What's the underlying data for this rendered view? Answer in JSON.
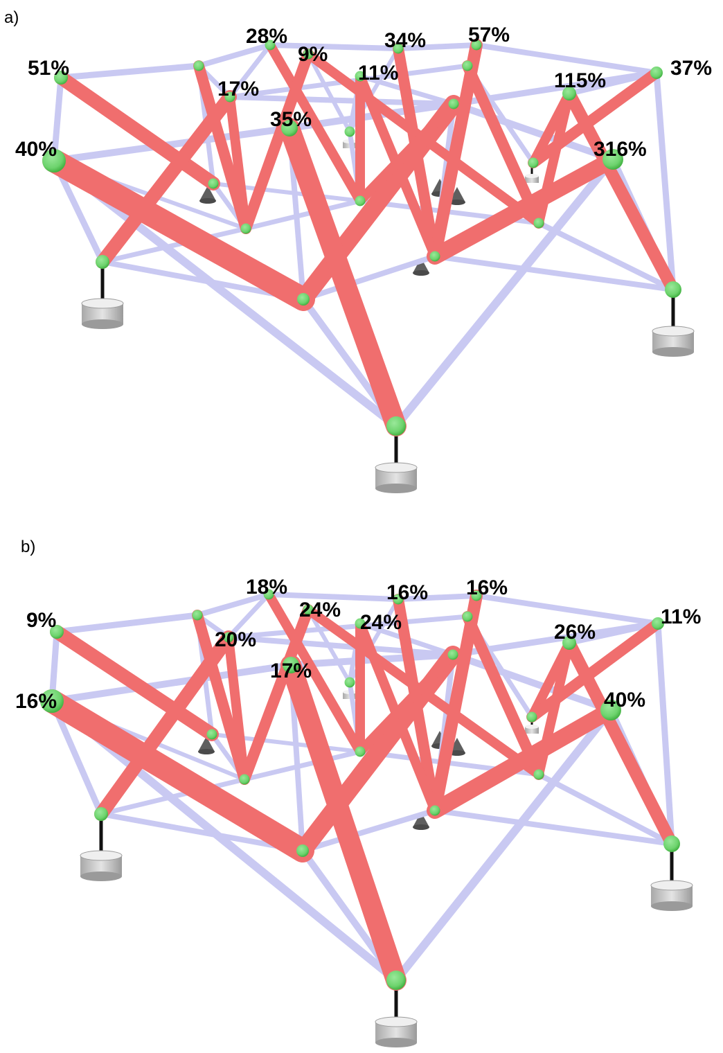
{
  "colors": {
    "tension": "#f06e6e",
    "compression": "#c9c9f2",
    "node": "#6dd36d",
    "node_dark": "#43b243",
    "support_post": "#111111",
    "support_base": "#bdbdbd",
    "pinned_support": "#5f5f5f",
    "label": "#000000"
  },
  "panels": [
    {
      "label": "a)",
      "nodes": [
        {
          "id": "front-left",
          "pct": "40%"
        },
        {
          "id": "far-left",
          "pct": "51%"
        },
        {
          "id": "top-left-mid",
          "pct": "28%"
        },
        {
          "id": "top-mid-1",
          "pct": "9%"
        },
        {
          "id": "inner-left",
          "pct": "17%"
        },
        {
          "id": "top-center",
          "pct": "35%"
        },
        {
          "id": "top-right-back",
          "pct": "34%"
        },
        {
          "id": "top-back-right",
          "pct": "57%"
        },
        {
          "id": "inner-right",
          "pct": "11%"
        },
        {
          "id": "right-mid",
          "pct": "115%"
        },
        {
          "id": "far-right",
          "pct": "37%"
        },
        {
          "id": "front-right",
          "pct": "316%"
        }
      ]
    },
    {
      "label": "b)",
      "nodes": [
        {
          "id": "front-left",
          "pct": "16%"
        },
        {
          "id": "far-left",
          "pct": "9%"
        },
        {
          "id": "top-left-mid",
          "pct": "18%"
        },
        {
          "id": "top-mid-1",
          "pct": "24%"
        },
        {
          "id": "inner-left",
          "pct": "20%"
        },
        {
          "id": "top-center",
          "pct": "17%"
        },
        {
          "id": "top-right-back",
          "pct": "16%"
        },
        {
          "id": "top-back-right",
          "pct": "16%"
        },
        {
          "id": "inner-right",
          "pct": "24%"
        },
        {
          "id": "right-mid",
          "pct": "26%"
        },
        {
          "id": "far-right",
          "pct": "11%"
        },
        {
          "id": "front-right",
          "pct": "40%"
        }
      ]
    }
  ]
}
